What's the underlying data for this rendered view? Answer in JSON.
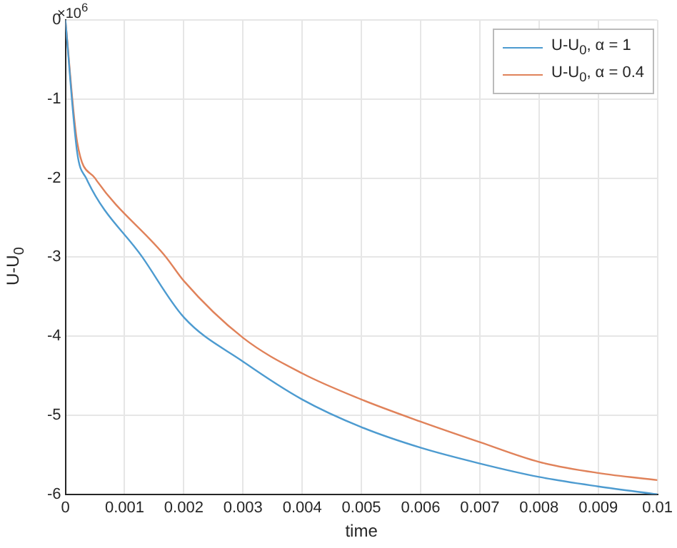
{
  "chart_data": {
    "type": "line",
    "xlabel": "time",
    "ylabel": "U-U$_{0}$",
    "annotations": [
      "×10$^{6}$"
    ],
    "xlim": [
      0,
      0.01
    ],
    "xticks": [
      0,
      0.001,
      0.002,
      0.003,
      0.004,
      0.005,
      0.006,
      0.007,
      0.008,
      0.009,
      0.01
    ],
    "ylim": [
      -6,
      0
    ],
    "yticks": [
      -6,
      -5,
      -4,
      -3,
      -2,
      -1,
      0
    ],
    "grid": true,
    "legend": "top right",
    "marker": "none",
    "line_style": "solid",
    "series": [
      {
        "name": "U-U$_{0}$, α = 1",
        "color": "#4d9bd0",
        "x": [
          0,
          0.0002,
          0.00035,
          0.0013,
          0.002,
          0.003,
          0.004,
          0.005,
          0.006,
          0.007,
          0.008,
          0.009,
          0.01
        ],
        "values": [
          0,
          -1.68,
          -2.0,
          -3.0,
          -3.76,
          -4.32,
          -4.8,
          -5.15,
          -5.41,
          -5.61,
          -5.78,
          -5.9,
          -6.0
        ]
      },
      {
        "name": "U-U$_{0}$, α = 0.4",
        "color": "#e0825a",
        "x": [
          0,
          0.0002,
          0.0005,
          0.0017,
          0.002,
          0.003,
          0.004,
          0.005,
          0.006,
          0.007,
          0.008,
          0.009,
          0.01
        ],
        "values": [
          0,
          -1.55,
          -2.0,
          -3.0,
          -3.3,
          -4.02,
          -4.47,
          -4.8,
          -5.08,
          -5.34,
          -5.59,
          -5.73,
          -5.82
        ]
      }
    ]
  }
}
